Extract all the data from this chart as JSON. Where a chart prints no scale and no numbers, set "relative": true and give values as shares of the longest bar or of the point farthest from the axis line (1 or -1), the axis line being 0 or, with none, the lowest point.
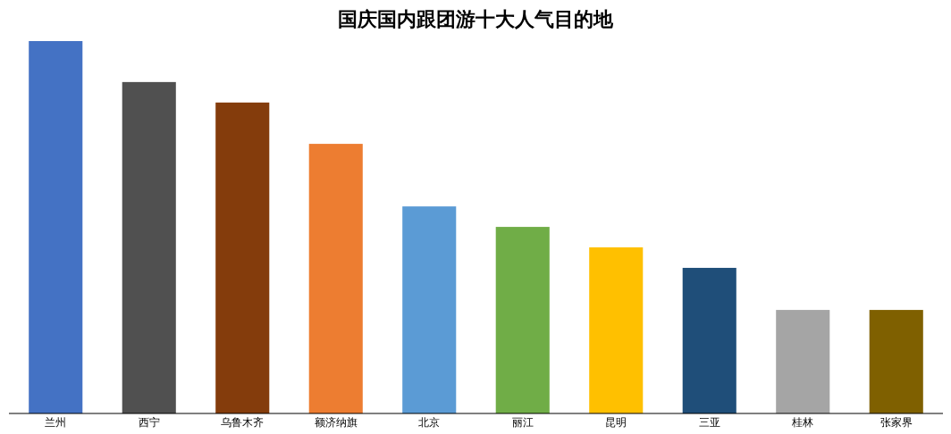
{
  "chart_data": {
    "type": "bar",
    "title": "国庆国内跟团游十大人气目的地",
    "relative": true,
    "categories": [
      "兰州",
      "西宁",
      "乌鲁木齐",
      "额济纳旗",
      "北京",
      "丽江",
      "昆明",
      "三亚",
      "桂林",
      "张家界"
    ],
    "values": [
      1,
      0.89,
      0.835,
      0.724,
      0.556,
      0.501,
      0.446,
      0.391,
      0.278,
      0.278
    ],
    "colors": [
      "#4472c4",
      "#505050",
      "#843c0c",
      "#ed7d31",
      "#5b9bd5",
      "#70ad47",
      "#ffc000",
      "#1f4e79",
      "#a5a5a5",
      "#7f6000"
    ]
  }
}
